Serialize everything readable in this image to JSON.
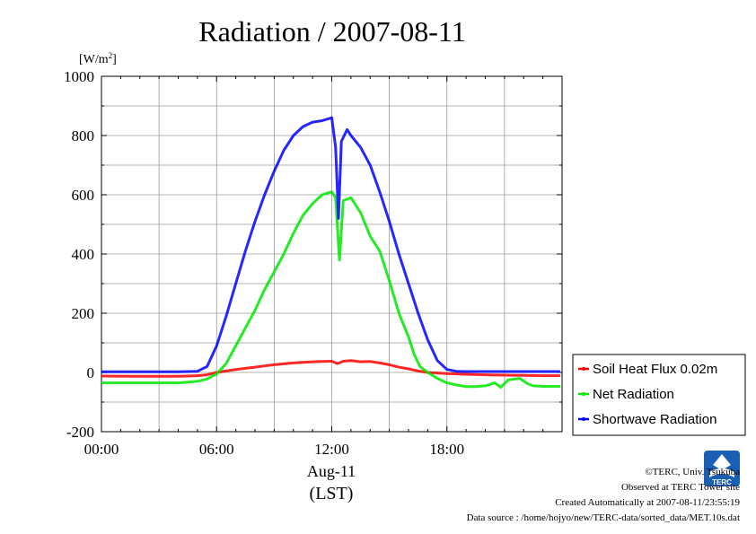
{
  "chart_data": {
    "type": "line",
    "title": "Radiation / 2007-08-11",
    "ylabel_unit": "[W/m2]",
    "ylabel_unit_base": "[W/m",
    "ylabel_unit_sup": "2",
    "ylabel_unit_close": "]",
    "xlabel_date": "Aug-11",
    "xlabel_tz": "(LST)",
    "ylim": [
      -200,
      1000
    ],
    "xlim": [
      0,
      24
    ],
    "y_ticks": [
      {
        "value": -200,
        "label": "-200"
      },
      {
        "value": 0,
        "label": "0"
      },
      {
        "value": 200,
        "label": "200"
      },
      {
        "value": 400,
        "label": "400"
      },
      {
        "value": 600,
        "label": "600"
      },
      {
        "value": 800,
        "label": "800"
      },
      {
        "value": 1000,
        "label": "1000"
      }
    ],
    "x_ticks": [
      {
        "value": 0,
        "label": "00:00"
      },
      {
        "value": 6,
        "label": "06:00"
      },
      {
        "value": 12,
        "label": "12:00"
      },
      {
        "value": 18,
        "label": "18:00"
      }
    ],
    "grid": true,
    "legend_position": "right, below plot top",
    "series": [
      {
        "name": "Soil Heat Flux 0.02m",
        "color": "#ff0000",
        "points": [
          [
            0,
            -12
          ],
          [
            2,
            -13
          ],
          [
            4,
            -13
          ],
          [
            5,
            -11
          ],
          [
            5.5,
            -8
          ],
          [
            6,
            0
          ],
          [
            6.5,
            5
          ],
          [
            7,
            10
          ],
          [
            7.5,
            14
          ],
          [
            8,
            18
          ],
          [
            8.5,
            22
          ],
          [
            9,
            26
          ],
          [
            9.5,
            29
          ],
          [
            10,
            32
          ],
          [
            10.5,
            34
          ],
          [
            11,
            36
          ],
          [
            11.5,
            37
          ],
          [
            12,
            38
          ],
          [
            12.3,
            30
          ],
          [
            12.6,
            38
          ],
          [
            13,
            40
          ],
          [
            13.5,
            36
          ],
          [
            14,
            37
          ],
          [
            14.5,
            32
          ],
          [
            15,
            26
          ],
          [
            15.5,
            18
          ],
          [
            16,
            12
          ],
          [
            16.5,
            5
          ],
          [
            17,
            0
          ],
          [
            18,
            -4
          ],
          [
            19,
            -6
          ],
          [
            20,
            -8
          ],
          [
            21,
            -9
          ],
          [
            22,
            -10
          ],
          [
            23,
            -11
          ],
          [
            23.9,
            -11
          ]
        ]
      },
      {
        "name": "Net Radiation",
        "color": "#00e600",
        "points": [
          [
            0,
            -35
          ],
          [
            2,
            -35
          ],
          [
            4,
            -35
          ],
          [
            5,
            -30
          ],
          [
            5.5,
            -22
          ],
          [
            6,
            -5
          ],
          [
            6.5,
            30
          ],
          [
            7,
            90
          ],
          [
            7.5,
            150
          ],
          [
            8,
            210
          ],
          [
            8.5,
            280
          ],
          [
            9,
            340
          ],
          [
            9.5,
            400
          ],
          [
            10,
            470
          ],
          [
            10.5,
            530
          ],
          [
            11,
            570
          ],
          [
            11.5,
            600
          ],
          [
            12,
            610
          ],
          [
            12.2,
            590
          ],
          [
            12.4,
            380
          ],
          [
            12.6,
            580
          ],
          [
            13,
            590
          ],
          [
            13.5,
            540
          ],
          [
            14,
            460
          ],
          [
            14.5,
            410
          ],
          [
            15,
            310
          ],
          [
            15.5,
            200
          ],
          [
            16,
            120
          ],
          [
            16.3,
            60
          ],
          [
            16.6,
            20
          ],
          [
            17,
            0
          ],
          [
            17.5,
            -20
          ],
          [
            18,
            -35
          ],
          [
            18.5,
            -42
          ],
          [
            19,
            -48
          ],
          [
            19.5,
            -48
          ],
          [
            20,
            -45
          ],
          [
            20.5,
            -35
          ],
          [
            20.8,
            -50
          ],
          [
            21.2,
            -25
          ],
          [
            21.8,
            -20
          ],
          [
            22.2,
            -38
          ],
          [
            22.5,
            -45
          ],
          [
            23,
            -47
          ],
          [
            23.9,
            -47
          ]
        ]
      },
      {
        "name": "Shortwave Radiation",
        "color": "#0000ff",
        "points": [
          [
            0,
            2
          ],
          [
            2,
            2
          ],
          [
            4,
            2
          ],
          [
            5,
            4
          ],
          [
            5.5,
            20
          ],
          [
            6,
            90
          ],
          [
            6.5,
            190
          ],
          [
            7,
            300
          ],
          [
            7.5,
            410
          ],
          [
            8,
            510
          ],
          [
            8.5,
            600
          ],
          [
            9,
            680
          ],
          [
            9.5,
            750
          ],
          [
            10,
            800
          ],
          [
            10.5,
            830
          ],
          [
            11,
            845
          ],
          [
            11.5,
            850
          ],
          [
            12,
            860
          ],
          [
            12.2,
            760
          ],
          [
            12.35,
            520
          ],
          [
            12.5,
            780
          ],
          [
            12.8,
            820
          ],
          [
            13,
            800
          ],
          [
            13.5,
            760
          ],
          [
            14,
            700
          ],
          [
            14.5,
            610
          ],
          [
            15,
            510
          ],
          [
            15.5,
            400
          ],
          [
            16,
            300
          ],
          [
            16.5,
            200
          ],
          [
            17,
            110
          ],
          [
            17.5,
            40
          ],
          [
            18,
            10
          ],
          [
            18.5,
            4
          ],
          [
            19,
            3
          ],
          [
            20,
            3
          ],
          [
            21,
            3
          ],
          [
            22,
            3
          ],
          [
            23,
            3
          ],
          [
            23.9,
            3
          ]
        ]
      }
    ]
  },
  "credits": {
    "copyright": "©TERC, Univ. Tsukuba",
    "site": "Observed at TERC Tower site",
    "created": "Created Automatically at 2007-08-11/23:55:19",
    "source": "Data source : /home/hojyo/new/TERC-data/sorted_data/MET.10s.dat",
    "logo_text": "TERC"
  }
}
